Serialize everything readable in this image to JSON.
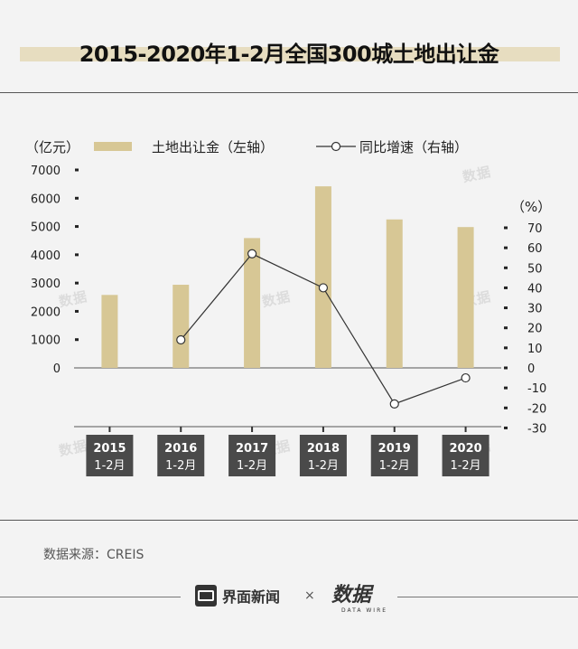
{
  "title": "2015-2020年1-2月全国300城土地出让金",
  "legend": {
    "left_unit": "（亿元）",
    "bar_label": "土地出让金（左轴）",
    "line_label": "同比增速（右轴）",
    "right_unit": "（%）"
  },
  "watermark_text": "数据",
  "source": "数据来源：CREIS",
  "footer": {
    "brand": "界面新闻",
    "times": "×",
    "partner": "数据",
    "partner_sub": "DATA WIRE"
  },
  "colors": {
    "bar": "#d7c795",
    "line": "#333333",
    "x_label_bg": "#4a4a4a",
    "title_strip": "#e7ddc0"
  },
  "chart_data": {
    "type": "bar",
    "categories": [
      "2015",
      "2016",
      "2017",
      "2018",
      "2019",
      "2020"
    ],
    "category_sublabels": [
      "1-2月",
      "1-2月",
      "1-2月",
      "1-2月",
      "1-2月",
      "1-2月"
    ],
    "series": [
      {
        "name": "土地出让金（左轴）",
        "type": "bar",
        "axis": "left",
        "values": [
          2580,
          2940,
          4590,
          6420,
          5250,
          4980
        ]
      },
      {
        "name": "同比增速（右轴）",
        "type": "line",
        "axis": "right",
        "values": [
          null,
          14,
          57,
          40,
          -18,
          -5
        ]
      }
    ],
    "y_left": {
      "range": [
        0,
        7000
      ],
      "ticks": [
        0,
        1000,
        2000,
        3000,
        4000,
        5000,
        6000,
        7000
      ],
      "label": "（亿元）"
    },
    "y_right": {
      "range": [
        -30,
        70
      ],
      "ticks": [
        -30,
        -20,
        -10,
        0,
        10,
        20,
        30,
        40,
        50,
        60,
        70
      ],
      "label": "（%）"
    },
    "grid": false,
    "legend_position": "top"
  }
}
